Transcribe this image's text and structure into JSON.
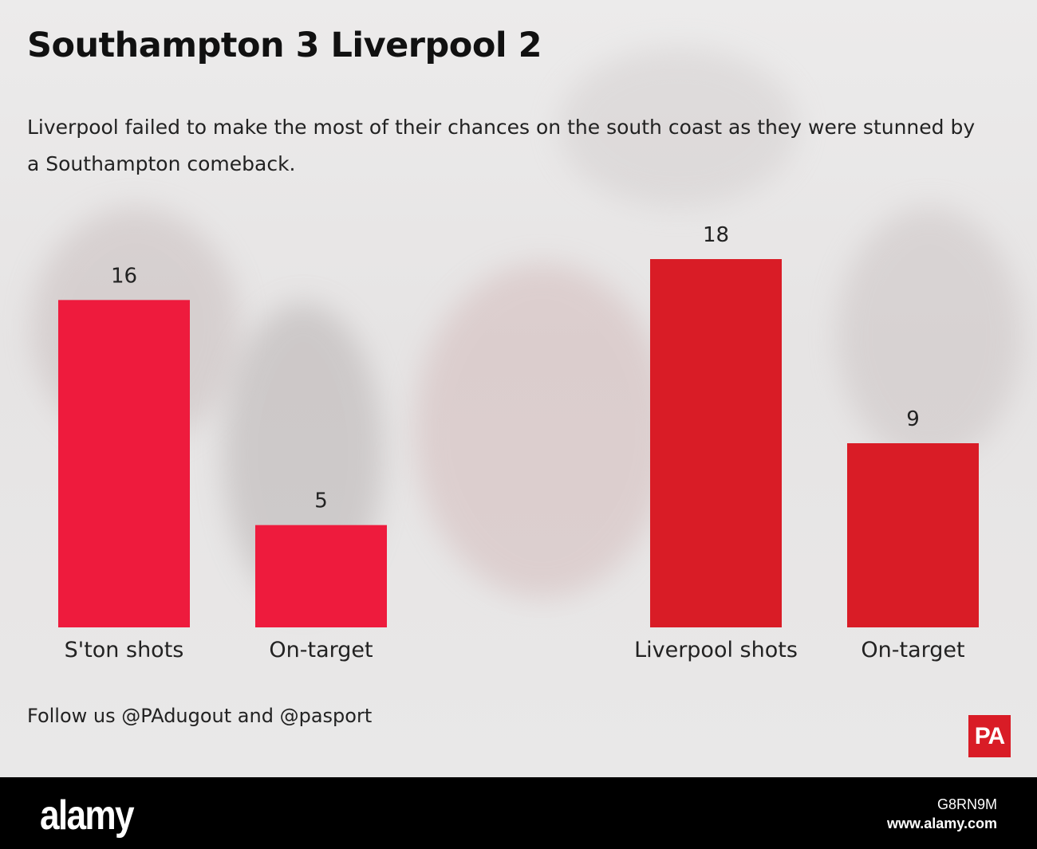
{
  "title": "Southampton 3 Liverpool 2",
  "subtitle": "Liverpool failed to make the most of their chances on the south coast as they were stunned by a Southampton comeback.",
  "footer": "Follow us @PAdugout and @pasport",
  "logo": "PA",
  "colors": {
    "southampton": "#ee1b3d",
    "liverpool": "#d91c26"
  },
  "chart_data": {
    "type": "bar",
    "categories": [
      "S'ton shots",
      "On-target",
      "Liverpool shots",
      "On-target"
    ],
    "values": [
      16,
      5,
      18,
      9
    ],
    "bar_colors": [
      "#ee1b3d",
      "#ee1b3d",
      "#d91c26",
      "#d91c26"
    ],
    "ylim": [
      0,
      18
    ],
    "grid": false,
    "legend": "none"
  },
  "watermark": {
    "brand": "alamy",
    "image_id": "G8RN9M",
    "url": "www.alamy.com"
  }
}
